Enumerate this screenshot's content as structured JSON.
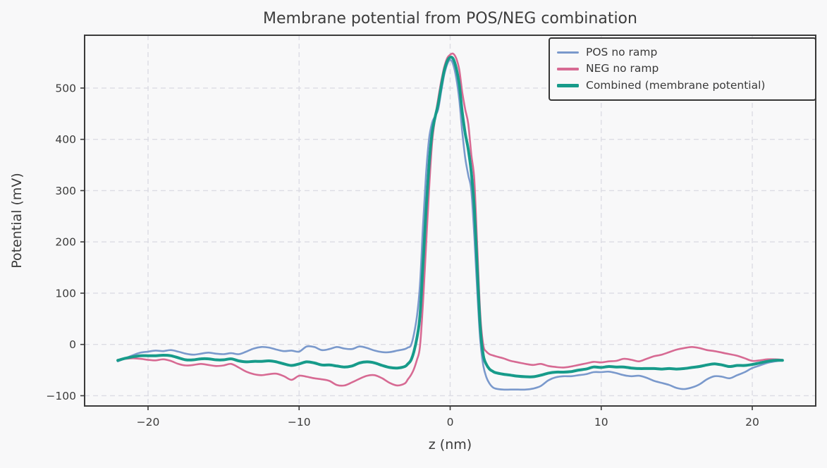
{
  "chart_data": {
    "type": "line",
    "title": "Membrane potential from POS/NEG combination",
    "xlabel": "z (nm)",
    "ylabel": "Potential (mV)",
    "xlim": [
      -24.2,
      24.2
    ],
    "ylim": [
      -120,
      603
    ],
    "grid": "dashed",
    "legend_position": "upper right",
    "xticks": {
      "values": [
        -20,
        -10,
        0,
        10,
        20
      ],
      "labels": [
        "−20",
        "−10",
        "0",
        "10",
        "20"
      ]
    },
    "yticks": {
      "values": [
        -100,
        0,
        100,
        200,
        300,
        400,
        500
      ],
      "labels": [
        "−100",
        "0",
        "100",
        "200",
        "300",
        "400",
        "500"
      ]
    },
    "x": [
      -22,
      -21.5,
      -21,
      -20.5,
      -20,
      -19.5,
      -19,
      -18.5,
      -18,
      -17.5,
      -17,
      -16.5,
      -16,
      -15.5,
      -15,
      -14.5,
      -14,
      -13.5,
      -13,
      -12.5,
      -12,
      -11.5,
      -11,
      -10.5,
      -10,
      -9.5,
      -9,
      -8.5,
      -8,
      -7.5,
      -7,
      -6.5,
      -6,
      -5.5,
      -5,
      -4.5,
      -4,
      -3.5,
      -3,
      -2.8,
      -2.6,
      -2.4,
      -2.2,
      -2,
      -1.8,
      -1.6,
      -1.4,
      -1.2,
      -1,
      -0.8,
      -0.6,
      -0.4,
      -0.2,
      0,
      0.2,
      0.4,
      0.6,
      0.8,
      1,
      1.2,
      1.4,
      1.6,
      1.8,
      2,
      2.2,
      2.4,
      2.6,
      2.8,
      3,
      3.5,
      4,
      4.5,
      5,
      5.5,
      6,
      6.5,
      7,
      7.5,
      8,
      8.5,
      9,
      9.5,
      10,
      10.5,
      11,
      11.5,
      12,
      12.5,
      13,
      13.5,
      14,
      14.5,
      15,
      15.5,
      16,
      16.5,
      17,
      17.5,
      18,
      18.5,
      19,
      19.5,
      20,
      20.5,
      21,
      21.5,
      22
    ],
    "series": [
      {
        "name": "POS no ramp",
        "color": "#7a99cc",
        "linewidth": 2.6,
        "values": [
          -33,
          -27,
          -21,
          -16,
          -14,
          -12,
          -13,
          -11,
          -14,
          -18,
          -20,
          -18,
          -16,
          -18,
          -19,
          -17,
          -19,
          -14,
          -8,
          -5,
          -6,
          -10,
          -13,
          -12,
          -14,
          -4,
          -5,
          -11,
          -9,
          -5,
          -8,
          -9,
          -4,
          -7,
          -12,
          -15,
          -15,
          -12,
          -9,
          -6,
          -2,
          20,
          55,
          115,
          230,
          330,
          400,
          432,
          445,
          458,
          492,
          525,
          546,
          555,
          546,
          520,
          478,
          415,
          363,
          330,
          300,
          210,
          100,
          5,
          -42,
          -64,
          -76,
          -83,
          -86,
          -88,
          -88,
          -88,
          -88,
          -86,
          -81,
          -70,
          -64,
          -62,
          -62,
          -60,
          -58,
          -54,
          -54,
          -53,
          -56,
          -60,
          -62,
          -61,
          -65,
          -71,
          -75,
          -79,
          -85,
          -87,
          -84,
          -78,
          -68,
          -62,
          -63,
          -66,
          -60,
          -54,
          -46,
          -41,
          -36,
          -33,
          -31
        ]
      },
      {
        "name": "NEG no ramp",
        "color": "#d76a93",
        "linewidth": 2.6,
        "values": [
          -30,
          -28,
          -27,
          -28,
          -30,
          -31,
          -29,
          -32,
          -38,
          -41,
          -40,
          -38,
          -40,
          -42,
          -41,
          -38,
          -45,
          -53,
          -58,
          -60,
          -58,
          -57,
          -62,
          -69,
          -61,
          -63,
          -66,
          -68,
          -71,
          -79,
          -80,
          -74,
          -67,
          -61,
          -60,
          -66,
          -75,
          -80,
          -76,
          -68,
          -60,
          -48,
          -30,
          -5,
          80,
          190,
          300,
          392,
          440,
          478,
          512,
          540,
          558,
          565,
          567,
          558,
          536,
          492,
          458,
          430,
          370,
          320,
          185,
          55,
          -2,
          -14,
          -19,
          -21,
          -23,
          -27,
          -32,
          -35,
          -38,
          -40,
          -38,
          -42,
          -44,
          -45,
          -43,
          -40,
          -37,
          -34,
          -35,
          -33,
          -32,
          -28,
          -30,
          -33,
          -28,
          -23,
          -20,
          -15,
          -10,
          -7,
          -5,
          -7,
          -11,
          -13,
          -16,
          -19,
          -22,
          -27,
          -32,
          -31,
          -29,
          -29,
          -30
        ]
      },
      {
        "name": "Combined (membrane potential)",
        "color": "#179b8a",
        "linewidth": 4,
        "values": [
          -31,
          -27,
          -24,
          -22,
          -22,
          -22,
          -21,
          -22,
          -26,
          -30,
          -30,
          -28,
          -28,
          -30,
          -30,
          -28,
          -32,
          -34,
          -33,
          -33,
          -32,
          -34,
          -38,
          -41,
          -38,
          -34,
          -36,
          -40,
          -40,
          -42,
          -44,
          -42,
          -36,
          -34,
          -36,
          -41,
          -45,
          -46,
          -43,
          -38,
          -31,
          -14,
          13,
          55,
          155,
          260,
          350,
          412,
          443,
          468,
          502,
          533,
          552,
          560,
          557,
          539,
          507,
          453,
          411,
          380,
          335,
          265,
          143,
          30,
          -22,
          -39,
          -48,
          -52,
          -55,
          -58,
          -60,
          -62,
          -63,
          -63,
          -60,
          -56,
          -54,
          -54,
          -53,
          -50,
          -48,
          -44,
          -45,
          -43,
          -44,
          -44,
          -46,
          -47,
          -47,
          -47,
          -48,
          -47,
          -48,
          -47,
          -45,
          -43,
          -40,
          -38,
          -40,
          -43,
          -41,
          -41,
          -39,
          -36,
          -33,
          -31,
          -31
        ]
      }
    ],
    "style": {
      "figure_bg": "#f8f8f9",
      "axes_bg": "#f8f8f9",
      "grid_color": "#dcdce4",
      "spine_color": "#3b3b3b",
      "text_color": "#3c3c3c"
    }
  }
}
